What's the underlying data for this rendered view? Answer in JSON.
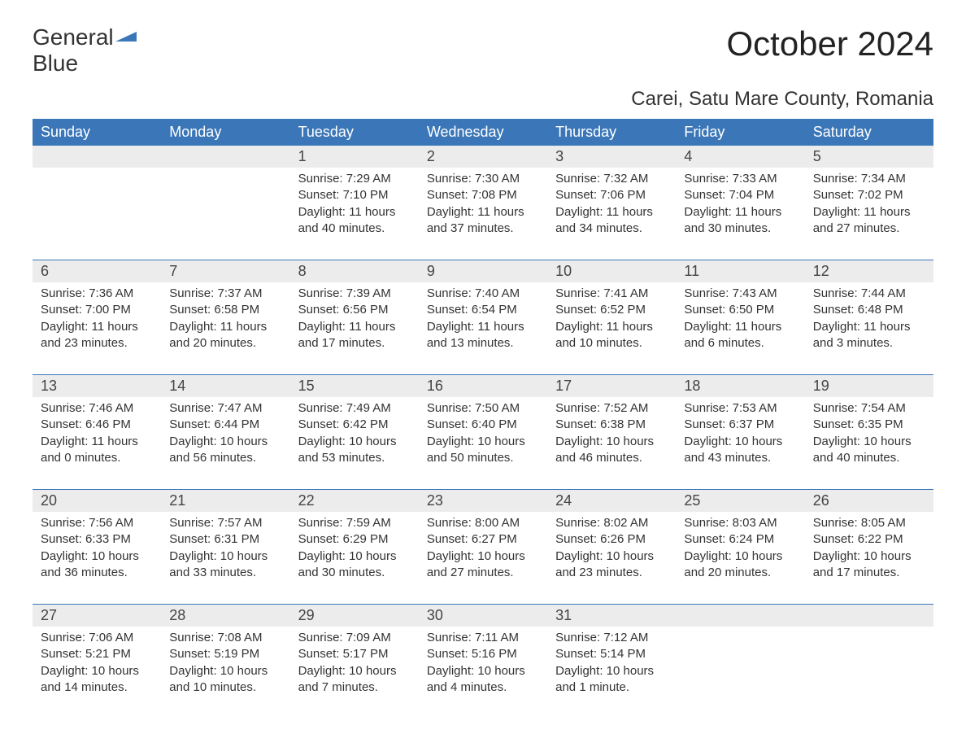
{
  "brand": {
    "line1": "General",
    "line2": "Blue",
    "accent_color": "#3b77b8"
  },
  "title": "October 2024",
  "subtitle": "Carei, Satu Mare County, Romania",
  "colors": {
    "header_bg": "#3b77b8",
    "header_text": "#ffffff",
    "daynum_bg": "#ececec",
    "text": "#333333",
    "page_bg": "#ffffff"
  },
  "fontsize": {
    "title": 42,
    "subtitle": 24,
    "weekday": 18,
    "daynum": 18,
    "body": 15
  },
  "weekdays": [
    "Sunday",
    "Monday",
    "Tuesday",
    "Wednesday",
    "Thursday",
    "Friday",
    "Saturday"
  ],
  "weeks": [
    [
      null,
      null,
      {
        "n": "1",
        "sr": "Sunrise: 7:29 AM",
        "ss": "Sunset: 7:10 PM",
        "dl": "Daylight: 11 hours and 40 minutes."
      },
      {
        "n": "2",
        "sr": "Sunrise: 7:30 AM",
        "ss": "Sunset: 7:08 PM",
        "dl": "Daylight: 11 hours and 37 minutes."
      },
      {
        "n": "3",
        "sr": "Sunrise: 7:32 AM",
        "ss": "Sunset: 7:06 PM",
        "dl": "Daylight: 11 hours and 34 minutes."
      },
      {
        "n": "4",
        "sr": "Sunrise: 7:33 AM",
        "ss": "Sunset: 7:04 PM",
        "dl": "Daylight: 11 hours and 30 minutes."
      },
      {
        "n": "5",
        "sr": "Sunrise: 7:34 AM",
        "ss": "Sunset: 7:02 PM",
        "dl": "Daylight: 11 hours and 27 minutes."
      }
    ],
    [
      {
        "n": "6",
        "sr": "Sunrise: 7:36 AM",
        "ss": "Sunset: 7:00 PM",
        "dl": "Daylight: 11 hours and 23 minutes."
      },
      {
        "n": "7",
        "sr": "Sunrise: 7:37 AM",
        "ss": "Sunset: 6:58 PM",
        "dl": "Daylight: 11 hours and 20 minutes."
      },
      {
        "n": "8",
        "sr": "Sunrise: 7:39 AM",
        "ss": "Sunset: 6:56 PM",
        "dl": "Daylight: 11 hours and 17 minutes."
      },
      {
        "n": "9",
        "sr": "Sunrise: 7:40 AM",
        "ss": "Sunset: 6:54 PM",
        "dl": "Daylight: 11 hours and 13 minutes."
      },
      {
        "n": "10",
        "sr": "Sunrise: 7:41 AM",
        "ss": "Sunset: 6:52 PM",
        "dl": "Daylight: 11 hours and 10 minutes."
      },
      {
        "n": "11",
        "sr": "Sunrise: 7:43 AM",
        "ss": "Sunset: 6:50 PM",
        "dl": "Daylight: 11 hours and 6 minutes."
      },
      {
        "n": "12",
        "sr": "Sunrise: 7:44 AM",
        "ss": "Sunset: 6:48 PM",
        "dl": "Daylight: 11 hours and 3 minutes."
      }
    ],
    [
      {
        "n": "13",
        "sr": "Sunrise: 7:46 AM",
        "ss": "Sunset: 6:46 PM",
        "dl": "Daylight: 11 hours and 0 minutes."
      },
      {
        "n": "14",
        "sr": "Sunrise: 7:47 AM",
        "ss": "Sunset: 6:44 PM",
        "dl": "Daylight: 10 hours and 56 minutes."
      },
      {
        "n": "15",
        "sr": "Sunrise: 7:49 AM",
        "ss": "Sunset: 6:42 PM",
        "dl": "Daylight: 10 hours and 53 minutes."
      },
      {
        "n": "16",
        "sr": "Sunrise: 7:50 AM",
        "ss": "Sunset: 6:40 PM",
        "dl": "Daylight: 10 hours and 50 minutes."
      },
      {
        "n": "17",
        "sr": "Sunrise: 7:52 AM",
        "ss": "Sunset: 6:38 PM",
        "dl": "Daylight: 10 hours and 46 minutes."
      },
      {
        "n": "18",
        "sr": "Sunrise: 7:53 AM",
        "ss": "Sunset: 6:37 PM",
        "dl": "Daylight: 10 hours and 43 minutes."
      },
      {
        "n": "19",
        "sr": "Sunrise: 7:54 AM",
        "ss": "Sunset: 6:35 PM",
        "dl": "Daylight: 10 hours and 40 minutes."
      }
    ],
    [
      {
        "n": "20",
        "sr": "Sunrise: 7:56 AM",
        "ss": "Sunset: 6:33 PM",
        "dl": "Daylight: 10 hours and 36 minutes."
      },
      {
        "n": "21",
        "sr": "Sunrise: 7:57 AM",
        "ss": "Sunset: 6:31 PM",
        "dl": "Daylight: 10 hours and 33 minutes."
      },
      {
        "n": "22",
        "sr": "Sunrise: 7:59 AM",
        "ss": "Sunset: 6:29 PM",
        "dl": "Daylight: 10 hours and 30 minutes."
      },
      {
        "n": "23",
        "sr": "Sunrise: 8:00 AM",
        "ss": "Sunset: 6:27 PM",
        "dl": "Daylight: 10 hours and 27 minutes."
      },
      {
        "n": "24",
        "sr": "Sunrise: 8:02 AM",
        "ss": "Sunset: 6:26 PM",
        "dl": "Daylight: 10 hours and 23 minutes."
      },
      {
        "n": "25",
        "sr": "Sunrise: 8:03 AM",
        "ss": "Sunset: 6:24 PM",
        "dl": "Daylight: 10 hours and 20 minutes."
      },
      {
        "n": "26",
        "sr": "Sunrise: 8:05 AM",
        "ss": "Sunset: 6:22 PM",
        "dl": "Daylight: 10 hours and 17 minutes."
      }
    ],
    [
      {
        "n": "27",
        "sr": "Sunrise: 7:06 AM",
        "ss": "Sunset: 5:21 PM",
        "dl": "Daylight: 10 hours and 14 minutes."
      },
      {
        "n": "28",
        "sr": "Sunrise: 7:08 AM",
        "ss": "Sunset: 5:19 PM",
        "dl": "Daylight: 10 hours and 10 minutes."
      },
      {
        "n": "29",
        "sr": "Sunrise: 7:09 AM",
        "ss": "Sunset: 5:17 PM",
        "dl": "Daylight: 10 hours and 7 minutes."
      },
      {
        "n": "30",
        "sr": "Sunrise: 7:11 AM",
        "ss": "Sunset: 5:16 PM",
        "dl": "Daylight: 10 hours and 4 minutes."
      },
      {
        "n": "31",
        "sr": "Sunrise: 7:12 AM",
        "ss": "Sunset: 5:14 PM",
        "dl": "Daylight: 10 hours and 1 minute."
      },
      null,
      null
    ]
  ]
}
